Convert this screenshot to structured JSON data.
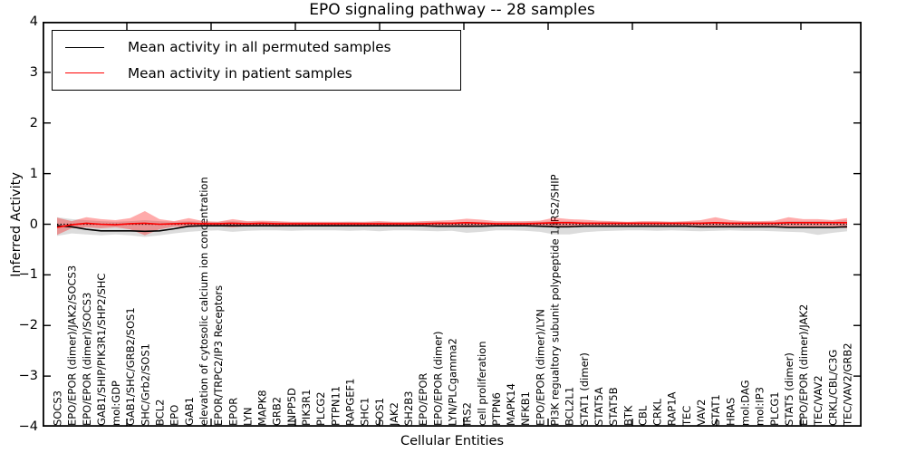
{
  "figure": {
    "title": "EPO signaling pathway -- 28 samples",
    "xlabel": "Cellular Entities",
    "ylabel": "Inferred Activity"
  },
  "legend": {
    "items": [
      {
        "label": "Mean activity in all permuted samples",
        "color": "#000000"
      },
      {
        "label": "Mean activity in patient samples",
        "color": "#ff0000"
      }
    ]
  },
  "chart_data": {
    "type": "line",
    "title": "EPO signaling pathway -- 28 samples",
    "xlabel": "Cellular Entities",
    "ylabel": "Inferred Activity",
    "ylim": [
      -4,
      4
    ],
    "yticks": [
      4,
      3,
      2,
      1,
      0,
      -1,
      -2,
      -3,
      -4
    ],
    "grid": false,
    "legend_position": "upper left",
    "zero_line_style": "dotted",
    "categories": [
      "SOCS3",
      "EPO/EPOR (dimer)/JAK2/SOCS3",
      "EPO/EPOR (dimer)/SOCS3",
      "GAB1/SHIP/PIK3R1/SHP2/SHC",
      "mol:GDP",
      "GAB1/SHC/GRB2/SOS1",
      "SHC/Grb2/SOS1",
      "BCL2",
      "EPO",
      "GAB1",
      "elevation of cytosolic calcium ion concentration",
      "EPOR/TRPC2/IP3 Receptors",
      "EPOR",
      "LYN",
      "MAPK8",
      "GRB2",
      "INPP5D",
      "PIK3R1",
      "PLCG2",
      "PTPN11",
      "RAPGEF1",
      "SHC1",
      "SOS1",
      "JAK2",
      "SH2B3",
      "EPO/EPOR",
      "EPO/EPOR (dimer)",
      "LYN/PLCgamma2",
      "IRS2",
      "cell proliferation",
      "PTPN6",
      "MAPK14",
      "NFKB1",
      "EPO/EPOR (dimer)/LYN",
      "PI3K regualtory subunit polypeptide 1/IRS2/SHIP",
      "BCL2L1",
      "STAT1 (dimer)",
      "STAT5A",
      "STAT5B",
      "BTK",
      "CBL",
      "CRKL",
      "RAP1A",
      "TEC",
      "VAV2",
      "STAT1",
      "HRAS",
      "mol:DAG",
      "mol:IP3",
      "PLCG1",
      "STAT5 (dimer)",
      "EPO/EPOR (dimer)/JAK2",
      "TEC/VAV2",
      "CRKL/CBL/C3G",
      "TEC/VAV2/GRB2"
    ],
    "series": [
      {
        "name": "Mean activity in all permuted samples",
        "color": "#000000",
        "values": [
          -0.03,
          -0.05,
          -0.1,
          -0.13,
          -0.13,
          -0.13,
          -0.14,
          -0.13,
          -0.09,
          -0.04,
          -0.03,
          -0.03,
          -0.03,
          -0.03,
          -0.03,
          -0.03,
          -0.03,
          -0.03,
          -0.03,
          -0.03,
          -0.03,
          -0.03,
          -0.03,
          -0.03,
          -0.03,
          -0.03,
          -0.04,
          -0.04,
          -0.04,
          -0.04,
          -0.03,
          -0.03,
          -0.03,
          -0.04,
          -0.05,
          -0.05,
          -0.04,
          -0.04,
          -0.04,
          -0.04,
          -0.04,
          -0.04,
          -0.04,
          -0.04,
          -0.05,
          -0.05,
          -0.05,
          -0.05,
          -0.05,
          -0.05,
          -0.06,
          -0.06,
          -0.06,
          -0.06,
          -0.05
        ],
        "band": {
          "lower": [
            -0.23,
            -0.18,
            -0.2,
            -0.22,
            -0.2,
            -0.22,
            -0.25,
            -0.22,
            -0.18,
            -0.15,
            -0.13,
            -0.12,
            -0.15,
            -0.13,
            -0.12,
            -0.12,
            -0.13,
            -0.12,
            -0.12,
            -0.12,
            -0.13,
            -0.12,
            -0.14,
            -0.12,
            -0.12,
            -0.13,
            -0.14,
            -0.13,
            -0.17,
            -0.15,
            -0.12,
            -0.12,
            -0.13,
            -0.15,
            -0.2,
            -0.2,
            -0.16,
            -0.14,
            -0.13,
            -0.12,
            -0.12,
            -0.13,
            -0.12,
            -0.13,
            -0.14,
            -0.13,
            -0.12,
            -0.13,
            -0.13,
            -0.14,
            -0.15,
            -0.16,
            -0.21,
            -0.17,
            -0.14
          ],
          "upper": [
            0.14,
            0.1,
            0.08,
            0.06,
            0.05,
            0.06,
            0.08,
            0.06,
            0.05,
            0.06,
            0.05,
            0.05,
            0.06,
            0.05,
            0.05,
            0.05,
            0.04,
            0.04,
            0.04,
            0.04,
            0.05,
            0.04,
            0.05,
            0.04,
            0.04,
            0.05,
            0.05,
            0.04,
            0.05,
            0.05,
            0.04,
            0.04,
            0.05,
            0.05,
            0.06,
            0.06,
            0.05,
            0.05,
            0.05,
            0.04,
            0.05,
            0.05,
            0.05,
            0.05,
            0.05,
            0.05,
            0.05,
            0.05,
            0.05,
            0.05,
            0.06,
            0.06,
            0.06,
            0.06,
            0.08
          ],
          "fill": "rgba(130,130,130,0.28)"
        }
      },
      {
        "name": "Mean activity in patient samples",
        "color": "#ff0000",
        "values": [
          -0.06,
          -0.01,
          0.02,
          0.0,
          -0.01,
          0.01,
          0.02,
          0.0,
          0.01,
          0.02,
          0.01,
          0.01,
          0.02,
          0.01,
          0.02,
          0.01,
          0.01,
          0.01,
          0.01,
          0.01,
          0.01,
          0.01,
          0.01,
          0.01,
          0.01,
          0.01,
          0.02,
          0.02,
          0.03,
          0.02,
          0.01,
          0.01,
          0.01,
          0.02,
          0.03,
          0.03,
          0.02,
          0.02,
          0.02,
          0.02,
          0.02,
          0.02,
          0.02,
          0.02,
          0.02,
          0.03,
          0.02,
          0.02,
          0.02,
          0.02,
          0.03,
          0.03,
          0.03,
          0.03,
          0.03
        ],
        "band": {
          "lower": [
            -0.21,
            -0.08,
            -0.06,
            -0.08,
            -0.06,
            -0.1,
            -0.22,
            -0.1,
            -0.05,
            -0.06,
            -0.04,
            -0.04,
            -0.06,
            -0.04,
            -0.04,
            -0.05,
            -0.04,
            -0.03,
            -0.03,
            -0.04,
            -0.04,
            -0.03,
            -0.04,
            -0.03,
            -0.04,
            -0.04,
            -0.05,
            -0.05,
            -0.06,
            -0.05,
            -0.04,
            -0.04,
            -0.04,
            -0.05,
            -0.06,
            -0.06,
            -0.05,
            -0.04,
            -0.04,
            -0.04,
            -0.04,
            -0.04,
            -0.04,
            -0.04,
            -0.05,
            -0.05,
            -0.05,
            -0.04,
            -0.04,
            -0.05,
            -0.05,
            -0.06,
            -0.05,
            -0.05,
            -0.08
          ],
          "upper": [
            0.13,
            0.06,
            0.14,
            0.1,
            0.08,
            0.12,
            0.26,
            0.1,
            0.06,
            0.12,
            0.06,
            0.05,
            0.1,
            0.06,
            0.07,
            0.06,
            0.05,
            0.05,
            0.05,
            0.05,
            0.05,
            0.05,
            0.06,
            0.05,
            0.05,
            0.06,
            0.07,
            0.08,
            0.11,
            0.09,
            0.06,
            0.06,
            0.06,
            0.07,
            0.13,
            0.1,
            0.09,
            0.07,
            0.06,
            0.05,
            0.06,
            0.06,
            0.05,
            0.06,
            0.08,
            0.14,
            0.08,
            0.06,
            0.06,
            0.07,
            0.14,
            0.1,
            0.1,
            0.08,
            0.12
          ],
          "fill": "rgba(255,0,0,0.33)"
        }
      }
    ]
  }
}
